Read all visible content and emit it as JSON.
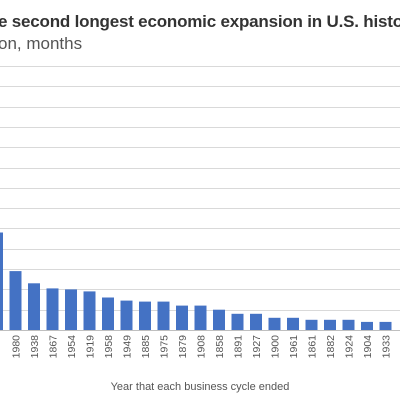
{
  "chart_data": {
    "type": "bar",
    "title": "e second longest economic expansion in U.S. history",
    "subtitle": "on, months",
    "xlabel": "Year that each business cycle ended",
    "ylabel": "",
    "ylim": [
      0,
      130
    ],
    "grid": true,
    "bar_color": "#4472c4",
    "categories": [
      "",
      "1980",
      "1938",
      "1867",
      "1954",
      "1919",
      "1958",
      "1949",
      "1885",
      "1975",
      "1879",
      "1908",
      "1858",
      "1891",
      "1927",
      "1900",
      "1961",
      "1861",
      "1882",
      "1924",
      "1904",
      "1933"
    ],
    "values": [
      48,
      29,
      23,
      20.5,
      20,
      19,
      16,
      14.5,
      14,
      14,
      12,
      12,
      10,
      8,
      8,
      6,
      6,
      5,
      5,
      5,
      4,
      4
    ]
  }
}
